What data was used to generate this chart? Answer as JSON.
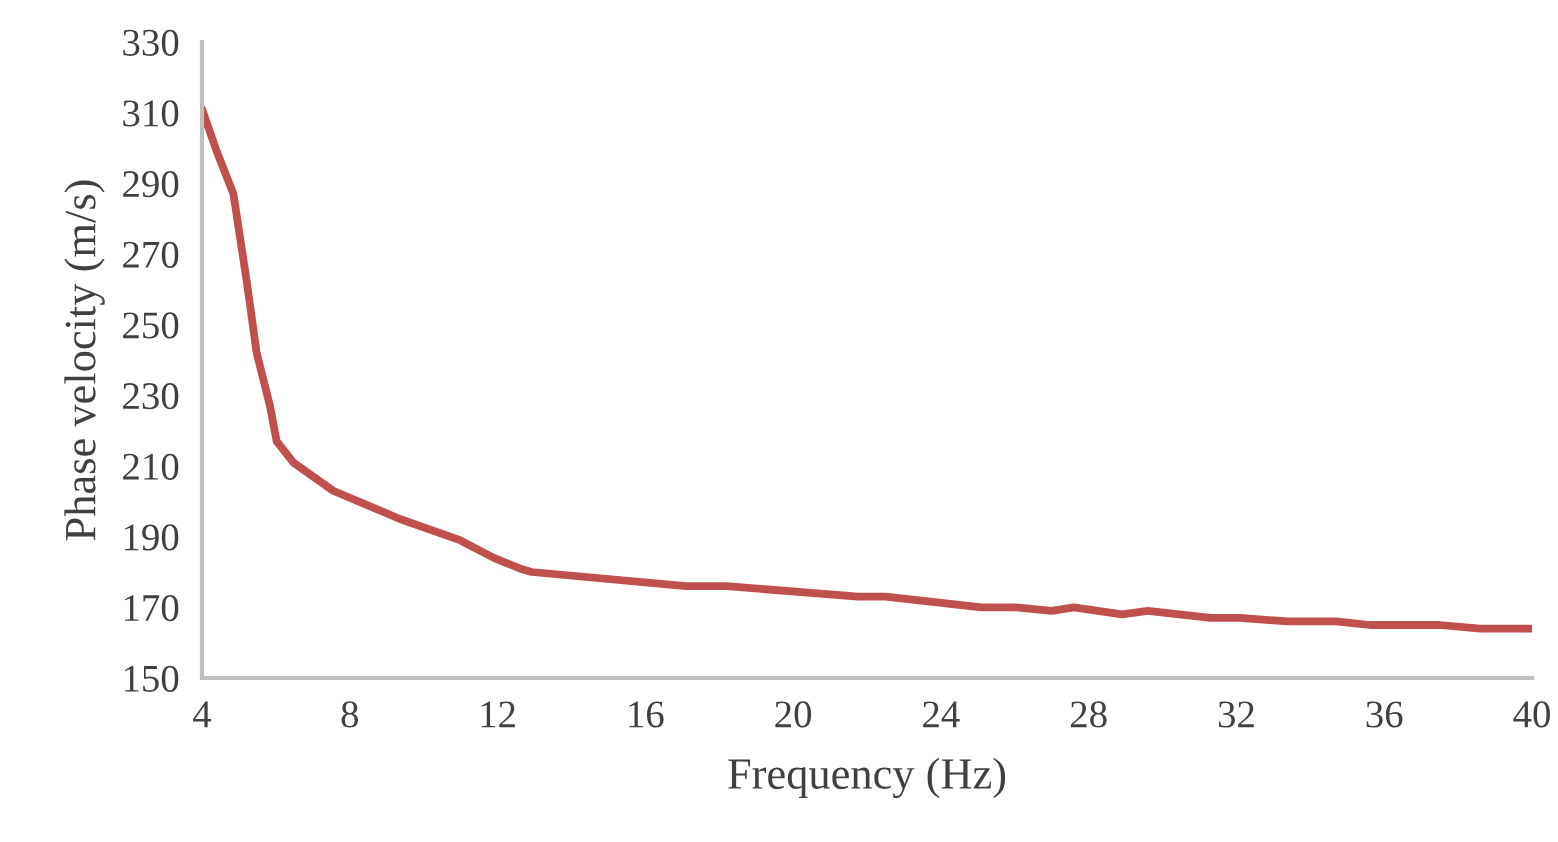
{
  "chart_data": {
    "type": "line",
    "xlabel": "Frequency (Hz)",
    "ylabel": "Phase velocity (m/s)",
    "x": [
      4,
      4.4,
      4.85,
      5.2,
      5.48,
      5.84,
      6.02,
      6.47,
      7.55,
      9.36,
      10.98,
      11.9,
      12.6,
      12.92,
      17.1,
      18.2,
      21.76,
      22.5,
      25.1,
      26,
      27,
      27.6,
      28.9,
      29.6,
      31.3,
      32.1,
      33.4,
      34.7,
      35.6,
      37.5,
      38.6,
      40
    ],
    "series": [
      {
        "color": "#c0504d",
        "values": [
          311,
          299,
          287,
          263,
          242,
          227,
          217,
          211,
          203,
          195,
          189,
          184,
          181,
          180,
          176,
          176,
          173,
          173,
          170,
          170,
          169,
          170,
          168,
          169,
          167,
          167,
          166,
          166,
          165,
          165,
          164,
          164
        ]
      }
    ],
    "xlim": [
      4,
      40
    ],
    "xticks": [
      4,
      8,
      12,
      16,
      20,
      24,
      28,
      32,
      36,
      40
    ],
    "ylim": [
      150,
      330
    ],
    "yticks": [
      150,
      170,
      190,
      210,
      230,
      250,
      270,
      290,
      310,
      330
    ],
    "grid": false,
    "legend": false,
    "line_style": "solid",
    "marker": "none"
  }
}
